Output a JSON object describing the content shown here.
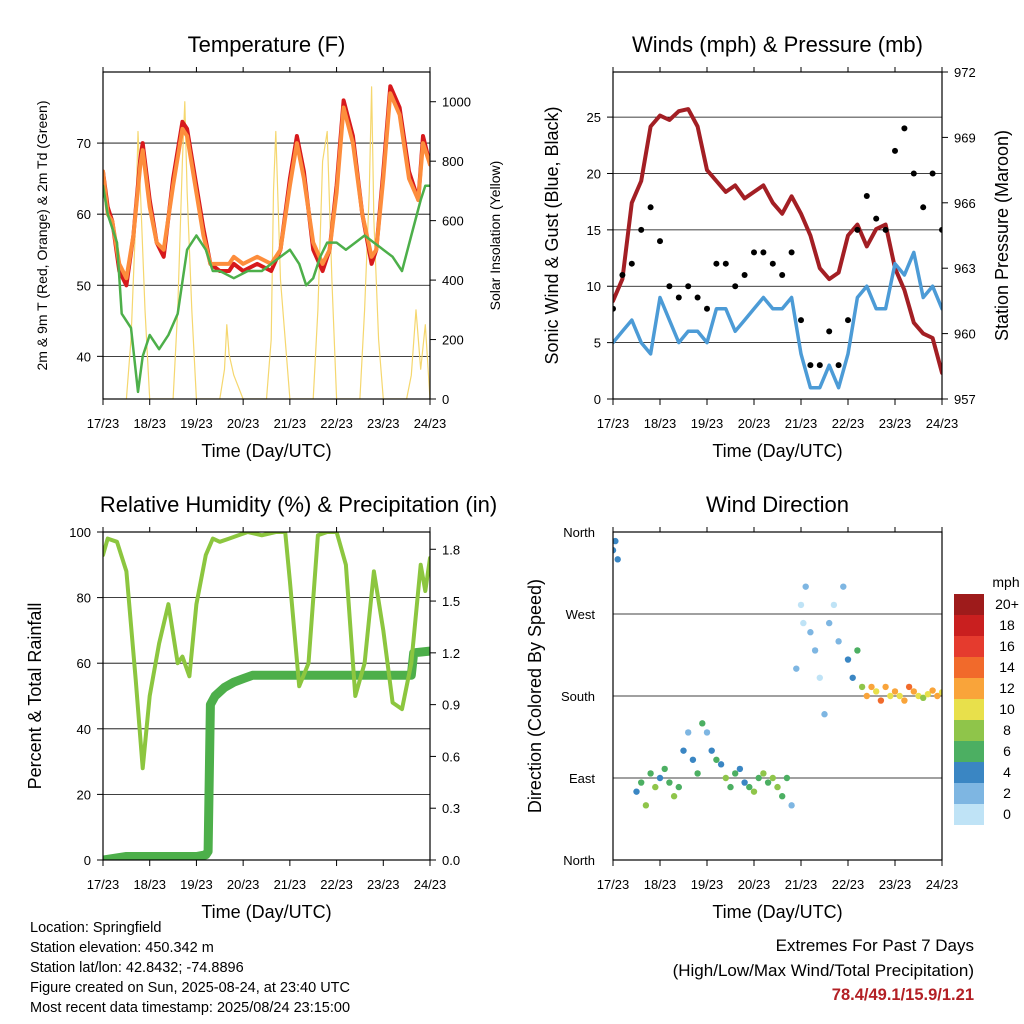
{
  "chart_data": [
    {
      "type": "line",
      "title": "Temperature (F)",
      "xlabel": "Time (Day/UTC)",
      "ylabel_left": "2m & 9m T (Red, Orange) & 2m Td (Green)",
      "ylabel_right": "Solar Insolation (Yellow)",
      "x_ticks": [
        "17/23",
        "18/23",
        "19/23",
        "20/23",
        "21/23",
        "22/23",
        "23/23",
        "24/23"
      ],
      "ylim": [
        34,
        80
      ],
      "yticks": [
        40,
        50,
        60,
        70
      ],
      "ylim_right": [
        0,
        1100
      ],
      "yticks_right": [
        0,
        200,
        400,
        600,
        800,
        1000
      ],
      "series": [
        {
          "name": "2m T",
          "color": "#d7191c",
          "x_days": [
            0,
            0.1,
            0.2,
            0.35,
            0.5,
            0.65,
            0.8,
            0.85,
            1.0,
            1.15,
            1.3,
            1.5,
            1.7,
            1.8,
            2.0,
            2.15,
            2.3,
            2.5,
            2.7,
            2.8,
            3.0,
            3.3,
            3.6,
            3.8,
            4.0,
            4.15,
            4.3,
            4.5,
            4.7,
            4.85,
            5.0,
            5.15,
            5.35,
            5.55,
            5.75,
            5.85,
            6.0,
            6.15,
            6.35,
            6.55,
            6.75,
            6.85,
            7.0
          ],
          "values": [
            66,
            61,
            59,
            52,
            50,
            57,
            68,
            70,
            62,
            56,
            54,
            65,
            73,
            72,
            64,
            58,
            53,
            52,
            52,
            53,
            52,
            53,
            52,
            55,
            65,
            71,
            66,
            55,
            52,
            55,
            64,
            76,
            71,
            60,
            53,
            55,
            66,
            78,
            75,
            66,
            62,
            71,
            67
          ]
        },
        {
          "name": "9m T",
          "color": "#fd8d3c",
          "x_days": [
            0,
            0.1,
            0.2,
            0.35,
            0.5,
            0.65,
            0.8,
            0.85,
            1.0,
            1.15,
            1.3,
            1.5,
            1.7,
            1.8,
            2.0,
            2.15,
            2.3,
            2.5,
            2.7,
            2.8,
            3.0,
            3.3,
            3.6,
            3.8,
            4.0,
            4.15,
            4.3,
            4.5,
            4.7,
            4.85,
            5.0,
            5.15,
            5.35,
            5.55,
            5.75,
            5.85,
            6.0,
            6.15,
            6.35,
            6.55,
            6.75,
            6.85,
            7.0
          ],
          "values": [
            66,
            60,
            59,
            53,
            51,
            57,
            67,
            69,
            61,
            56,
            55,
            64,
            72,
            71,
            63,
            57,
            53,
            53,
            53,
            54,
            53,
            54,
            53,
            55,
            64,
            70,
            65,
            56,
            53,
            55,
            63,
            75,
            70,
            60,
            54,
            55,
            65,
            77,
            74,
            65,
            62,
            70,
            67
          ]
        },
        {
          "name": "2m Td",
          "color": "#4daf4a",
          "x_days": [
            0,
            0.1,
            0.3,
            0.4,
            0.6,
            0.75,
            0.85,
            1.0,
            1.2,
            1.4,
            1.6,
            1.8,
            2.0,
            2.2,
            2.35,
            2.5,
            2.8,
            3.1,
            3.4,
            3.6,
            3.8,
            4.0,
            4.2,
            4.35,
            4.5,
            4.65,
            4.8,
            5.0,
            5.2,
            5.4,
            5.6,
            5.8,
            6.0,
            6.2,
            6.4,
            6.6,
            6.8,
            6.9,
            7.0
          ],
          "values": [
            64,
            60,
            56,
            46,
            44,
            35,
            40,
            43,
            41,
            43,
            46,
            55,
            57,
            55,
            52,
            52,
            51,
            52,
            52,
            53,
            54,
            55,
            53,
            50,
            51,
            54,
            56,
            56,
            55,
            56,
            57,
            56,
            55,
            54,
            52,
            57,
            62,
            64,
            64
          ]
        },
        {
          "name": "Solar Insolation",
          "color": "#f5d76e",
          "axis": "right",
          "x_days": [
            0.5,
            0.6,
            0.7,
            0.75,
            0.8,
            0.9,
            1.0,
            1.5,
            1.6,
            1.7,
            1.75,
            1.8,
            1.9,
            2.0,
            2.5,
            2.6,
            2.65,
            2.7,
            2.8,
            3.0,
            3.5,
            3.6,
            3.65,
            3.7,
            3.8,
            4.0,
            4.5,
            4.6,
            4.7,
            4.8,
            4.9,
            5.0,
            5.5,
            5.6,
            5.7,
            5.75,
            5.8,
            5.9,
            6.0,
            6.5,
            6.6,
            6.7,
            6.8,
            6.9,
            7.0
          ],
          "values": [
            0,
            200,
            600,
            900,
            700,
            300,
            0,
            0,
            300,
            800,
            1000,
            700,
            300,
            0,
            0,
            100,
            250,
            150,
            80,
            0,
            0,
            200,
            700,
            900,
            400,
            0,
            0,
            300,
            800,
            900,
            400,
            0,
            0,
            300,
            700,
            1050,
            600,
            200,
            0,
            0,
            80,
            300,
            100,
            250,
            0
          ]
        }
      ]
    },
    {
      "type": "line",
      "title": "Winds (mph) & Pressure (mb)",
      "xlabel": "Time (Day/UTC)",
      "ylabel_left": "Sonic Wind & Gust (Blue, Black)",
      "ylabel_right": "Station Pressure (Maroon)",
      "x_ticks": [
        "17/23",
        "18/23",
        "19/23",
        "20/23",
        "21/23",
        "22/23",
        "23/23",
        "24/23"
      ],
      "ylim": [
        0,
        29
      ],
      "yticks": [
        0,
        5,
        10,
        15,
        20,
        25
      ],
      "ylim_right": [
        957,
        972
      ],
      "yticks_right": [
        957,
        960,
        963,
        966,
        969,
        972
      ],
      "series": [
        {
          "name": "Sonic Wind",
          "color": "#4c9bd6",
          "x_days": [
            0,
            0.2,
            0.4,
            0.6,
            0.8,
            1.0,
            1.2,
            1.4,
            1.6,
            1.8,
            2.0,
            2.2,
            2.4,
            2.6,
            2.8,
            3.0,
            3.2,
            3.4,
            3.6,
            3.8,
            4.0,
            4.2,
            4.4,
            4.6,
            4.8,
            5.0,
            5.2,
            5.4,
            5.6,
            5.8,
            6.0,
            6.2,
            6.4,
            6.6,
            6.8,
            7.0
          ],
          "values": [
            5,
            6,
            7,
            5,
            4,
            9,
            7,
            5,
            6,
            6,
            5,
            8,
            8,
            6,
            7,
            8,
            9,
            8,
            8,
            9,
            4,
            1,
            1,
            3,
            1,
            4,
            9,
            10,
            8,
            8,
            12,
            11,
            13,
            9,
            10,
            8
          ]
        },
        {
          "name": "Gust",
          "color": "#000000",
          "x_days": [
            0,
            0.2,
            0.4,
            0.6,
            0.8,
            1.0,
            1.2,
            1.4,
            1.6,
            1.8,
            2.0,
            2.2,
            2.4,
            2.6,
            2.8,
            3.0,
            3.2,
            3.4,
            3.6,
            3.8,
            4.0,
            4.2,
            4.4,
            4.6,
            4.8,
            5.0,
            5.2,
            5.4,
            5.6,
            5.8,
            6.0,
            6.2,
            6.4,
            6.6,
            6.8,
            7.0
          ],
          "values": [
            8,
            11,
            12,
            15,
            17,
            14,
            10,
            9,
            10,
            9,
            8,
            12,
            12,
            10,
            11,
            13,
            13,
            12,
            11,
            13,
            7,
            3,
            3,
            6,
            3,
            7,
            15,
            18,
            16,
            15,
            22,
            24,
            20,
            17,
            20,
            15
          ]
        },
        {
          "name": "Station Pressure",
          "color": "#a31f24",
          "axis": "right",
          "x_days": [
            0,
            0.2,
            0.4,
            0.6,
            0.8,
            1.0,
            1.2,
            1.4,
            1.6,
            1.8,
            2.0,
            2.2,
            2.4,
            2.6,
            2.8,
            3.0,
            3.2,
            3.4,
            3.6,
            3.8,
            4.0,
            4.2,
            4.4,
            4.6,
            4.8,
            5.0,
            5.2,
            5.4,
            5.6,
            5.8,
            6.0,
            6.2,
            6.4,
            6.6,
            6.8,
            7.0
          ],
          "values": [
            961.5,
            962.5,
            966,
            967,
            969.5,
            970,
            969.8,
            970.2,
            970.3,
            969.5,
            967.5,
            967,
            966.5,
            966.8,
            966.2,
            966.5,
            966.8,
            966,
            965.5,
            966.3,
            965.5,
            964.5,
            963,
            962.5,
            962.8,
            964.5,
            965,
            964,
            964.8,
            965,
            963,
            962,
            960.5,
            960,
            959.8,
            958.2
          ]
        }
      ]
    },
    {
      "type": "line",
      "title": "Relative Humidity (%) & Precipitation (in)",
      "xlabel": "Time (Day/UTC)",
      "ylabel_left": "Percent & Total Rainfall",
      "x_ticks": [
        "17/23",
        "18/23",
        "19/23",
        "20/23",
        "21/23",
        "22/23",
        "23/23",
        "24/23"
      ],
      "ylim": [
        0,
        100
      ],
      "yticks": [
        0,
        20,
        40,
        60,
        80,
        100
      ],
      "ylim_right": [
        0,
        1.9
      ],
      "yticks_right": [
        "0.0",
        "0.3",
        "0.6",
        "0.9",
        "1.2",
        "1.5",
        "1.8"
      ],
      "series": [
        {
          "name": "Relative Humidity",
          "color": "#8cc63f",
          "x_days": [
            0,
            0.1,
            0.3,
            0.5,
            0.7,
            0.85,
            1.0,
            1.2,
            1.4,
            1.6,
            1.7,
            1.85,
            2.0,
            2.2,
            2.35,
            2.5,
            2.7,
            2.9,
            3.1,
            3.4,
            3.7,
            3.9,
            4.0,
            4.2,
            4.4,
            4.6,
            4.8,
            5.0,
            5.2,
            5.4,
            5.6,
            5.8,
            6.0,
            6.2,
            6.4,
            6.6,
            6.8,
            6.9,
            7.0
          ],
          "values": [
            93,
            98,
            97,
            88,
            55,
            28,
            50,
            66,
            78,
            60,
            62,
            56,
            78,
            93,
            98,
            97,
            98,
            99,
            100,
            99,
            100,
            100,
            85,
            53,
            60,
            99,
            100,
            100,
            90,
            50,
            60,
            88,
            70,
            48,
            46,
            60,
            90,
            82,
            92
          ]
        },
        {
          "name": "Total Precipitation",
          "color": "#4daf4a",
          "axis": "right",
          "x_days": [
            0,
            0.5,
            1.0,
            1.5,
            2.0,
            2.2,
            2.25,
            2.3,
            2.4,
            2.6,
            2.8,
            3.0,
            3.2,
            3.4,
            4.0,
            5.0,
            6.0,
            6.6,
            6.65,
            7.0
          ],
          "values": [
            0,
            0.02,
            0.02,
            0.02,
            0.02,
            0.03,
            0.05,
            0.9,
            0.95,
            1.0,
            1.03,
            1.05,
            1.07,
            1.07,
            1.07,
            1.07,
            1.07,
            1.07,
            1.2,
            1.21
          ]
        }
      ]
    },
    {
      "type": "scatter",
      "title": "Wind Direction",
      "xlabel": "Time (Day/UTC)",
      "ylabel_left": "Direction (Colored By Speed)",
      "x_ticks": [
        "17/23",
        "18/23",
        "19/23",
        "20/23",
        "21/23",
        "22/23",
        "23/23",
        "24/23"
      ],
      "ylim": [
        0,
        360
      ],
      "y_tick_labels": [
        "North",
        "East",
        "South",
        "West",
        "North"
      ],
      "y_tick_degrees": [
        0,
        90,
        180,
        270,
        360
      ],
      "colorbar": {
        "title": "mph",
        "labels": [
          "20+",
          "18",
          "16",
          "14",
          "12",
          "10",
          "8",
          "6",
          "4",
          "2",
          "0"
        ],
        "colors": [
          "#9e1b1b",
          "#c91f1f",
          "#e53b2e",
          "#f16a2b",
          "#f9a43a",
          "#e8e04b",
          "#8fc54a",
          "#4caf62",
          "#3a86c3",
          "#7eb6e2",
          "#bfe3f6"
        ]
      },
      "points": {
        "x_days": [
          0,
          0.05,
          0.1,
          0.5,
          0.6,
          0.7,
          0.8,
          0.9,
          1.0,
          1.1,
          1.2,
          1.3,
          1.4,
          1.5,
          1.6,
          1.7,
          1.8,
          1.9,
          2.0,
          2.1,
          2.2,
          2.3,
          2.4,
          2.5,
          2.6,
          2.7,
          2.8,
          2.9,
          3.0,
          3.1,
          3.2,
          3.3,
          3.4,
          3.5,
          3.6,
          3.7,
          3.8,
          3.9,
          4.0,
          4.05,
          4.1,
          4.2,
          4.3,
          4.4,
          4.5,
          4.6,
          4.7,
          4.8,
          4.9,
          5.0,
          5.1,
          5.2,
          5.3,
          5.4,
          5.5,
          5.6,
          5.7,
          5.8,
          5.9,
          6.0,
          6.1,
          6.2,
          6.3,
          6.4,
          6.5,
          6.6,
          6.7,
          6.8,
          6.9,
          7.0
        ],
        "direction_deg": [
          340,
          350,
          330,
          75,
          85,
          60,
          95,
          80,
          90,
          100,
          85,
          70,
          80,
          120,
          140,
          110,
          95,
          150,
          140,
          120,
          110,
          105,
          90,
          80,
          95,
          100,
          85,
          80,
          75,
          90,
          95,
          85,
          90,
          80,
          70,
          90,
          60,
          210,
          280,
          260,
          300,
          250,
          230,
          200,
          160,
          260,
          280,
          240,
          300,
          220,
          200,
          230,
          190,
          180,
          190,
          185,
          175,
          190,
          180,
          185,
          180,
          175,
          190,
          185,
          180,
          178,
          182,
          186,
          180,
          184
        ],
        "speed_mph": [
          4,
          5,
          4,
          5,
          7,
          8,
          6,
          9,
          5,
          6,
          7,
          8,
          6,
          4,
          3,
          5,
          7,
          6,
          3,
          4,
          6,
          5,
          8,
          7,
          6,
          4,
          5,
          7,
          9,
          6,
          8,
          7,
          9,
          8,
          7,
          6,
          2,
          2,
          1,
          1,
          2,
          3,
          2,
          1,
          3,
          2,
          1,
          3,
          2,
          4,
          5,
          6,
          9,
          12,
          13,
          11,
          15,
          12,
          10,
          12,
          11,
          13,
          14,
          12,
          10,
          9,
          11,
          12,
          13,
          11
        ]
      }
    }
  ],
  "info": {
    "location": "Location: Springfield",
    "elevation": "Station elevation: 450.342 m",
    "latlon": "Station lat/lon: 42.8432; -74.8896",
    "created": "Figure created on Sun, 2025-08-24, at 23:40 UTC",
    "recent": "Most recent data timestamp: 2025/08/24 23:15:00"
  },
  "extremes": {
    "title": "Extremes For Past 7 Days",
    "subtitle": "(High/Low/Max Wind/Total Precipitation)",
    "values": "78.4/49.1/15.9/1.21"
  }
}
